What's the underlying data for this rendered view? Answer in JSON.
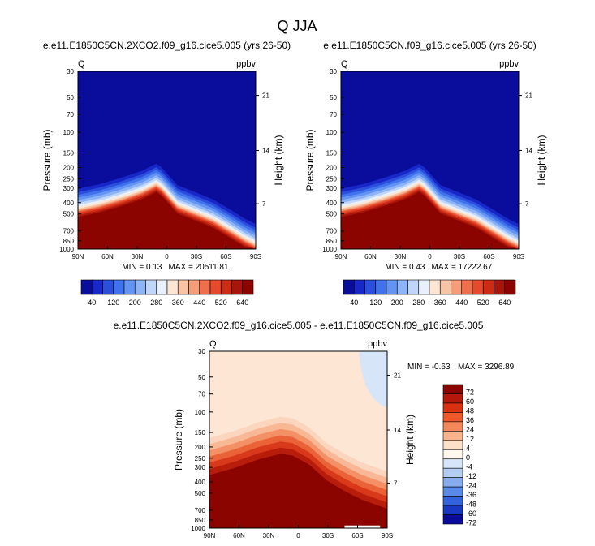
{
  "figure": {
    "title": "Q JJA"
  },
  "colors": {
    "upper": "#0a0d9c",
    "lower": "#8b0400",
    "diff_bg": "#fde6d4",
    "diff_blue": "#d6e6f8",
    "diff_red": "#8b0400"
  },
  "chart_data": [
    {
      "type": "heatmap",
      "title": "e.e11.E1850C5CN.2XCO2.f09_g16.cice5.005 (yrs 26-50)",
      "variable": "Q",
      "units": "ppbv",
      "ylabel": "Pressure (mb)",
      "y2label": "Height (km)",
      "x_ticks": [
        "90N",
        "60N",
        "30N",
        "0",
        "30S",
        "60S",
        "90S"
      ],
      "y_ticks": [
        30,
        50,
        70,
        100,
        150,
        200,
        250,
        300,
        400,
        500,
        700,
        850,
        1000
      ],
      "y2_ticks": [
        21,
        14,
        7
      ],
      "min_text": "MIN =  0.13",
      "max_text": "MAX = 20511.81",
      "colorbar_labels": [
        "40",
        "120",
        "200",
        "280",
        "360",
        "440",
        "520",
        "640"
      ]
    },
    {
      "type": "heatmap",
      "title": "e.e11.E1850C5CN.f09_g16.cice5.005 (yrs 26-50)",
      "variable": "Q",
      "units": "ppbv",
      "ylabel": "Pressure (mb)",
      "y2label": "Height (km)",
      "x_ticks": [
        "90N",
        "60N",
        "30N",
        "0",
        "30S",
        "60S",
        "90S"
      ],
      "y_ticks": [
        30,
        50,
        70,
        100,
        150,
        200,
        250,
        300,
        400,
        500,
        700,
        850,
        1000
      ],
      "y2_ticks": [
        21,
        14,
        7
      ],
      "min_text": "MIN =  0.43",
      "max_text": "MAX = 17222.67",
      "colorbar_labels": [
        "40",
        "120",
        "200",
        "280",
        "360",
        "440",
        "520",
        "640"
      ]
    },
    {
      "type": "heatmap",
      "title": "e.e11.E1850C5CN.2XCO2.f09_g16.cice5.005 - e.e11.E1850C5CN.f09_g16.cice5.005",
      "variable": "Q",
      "units": "ppbv",
      "ylabel": "Pressure (mb)",
      "y2label": "Height (km)",
      "x_ticks": [
        "90N",
        "60N",
        "30N",
        "0",
        "30S",
        "60S",
        "90S"
      ],
      "y_ticks": [
        30,
        50,
        70,
        100,
        150,
        200,
        250,
        300,
        400,
        500,
        700,
        850,
        1000
      ],
      "y2_ticks": [
        21,
        14,
        7
      ],
      "min_text": "MIN =  -0.63",
      "max_text": "MAX = 3296.89",
      "colorbar_labels": [
        "72",
        "60",
        "48",
        "36",
        "24",
        "12",
        "4",
        "0",
        "-4",
        "-12",
        "-24",
        "-36",
        "-48",
        "-60",
        "-72"
      ]
    }
  ]
}
